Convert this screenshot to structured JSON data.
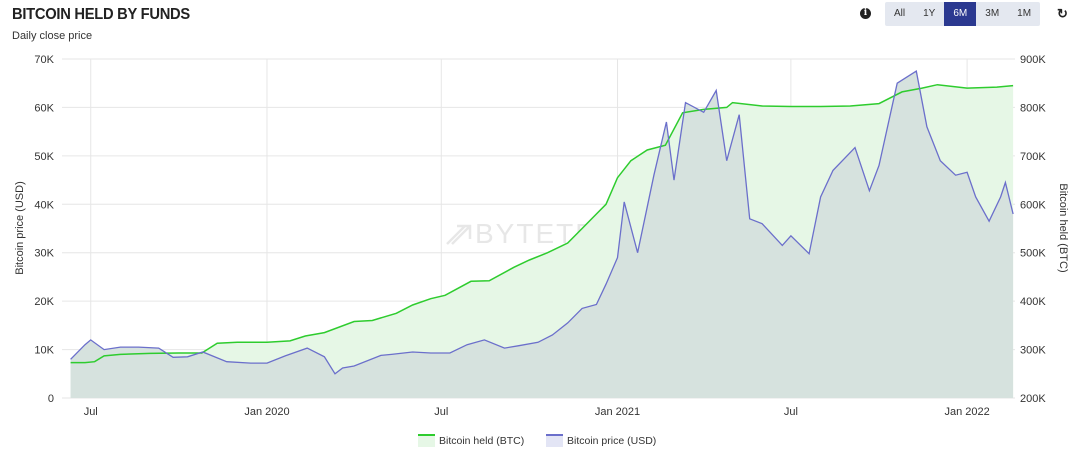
{
  "header": {
    "title": "BITCOIN HELD BY FUNDS",
    "subtitle": "Daily close price",
    "range_buttons": [
      "All",
      "1Y",
      "6M",
      "3M",
      "1M"
    ],
    "active_range": "6M",
    "info_icon": "info-circle-icon",
    "refresh_icon": "refresh-icon"
  },
  "watermark": "BYTETREE",
  "colors": {
    "held_line": "#2ecc2e",
    "held_fill": "#e6f7e6",
    "price_line": "#6b6fcb",
    "price_fill": "#d6e2de",
    "grid": "#e6e6e6",
    "active_button": "#2b3990"
  },
  "chart_data": {
    "type": "area",
    "x_ticks": [
      "Jul",
      "Jan 2020",
      "Jul",
      "Jan 2021",
      "Jul",
      "Jan 2022"
    ],
    "y_left": {
      "label": "Bitcoin price (USD)",
      "ticks": [
        "0",
        "10K",
        "20K",
        "30K",
        "40K",
        "50K",
        "60K",
        "70K"
      ],
      "range": [
        0,
        70000
      ]
    },
    "y_right": {
      "label": "Bitcoin held (BTC)",
      "ticks": [
        "200K",
        "300K",
        "400K",
        "500K",
        "600K",
        "700K",
        "800K",
        "900K"
      ],
      "range": [
        200000,
        900000
      ]
    },
    "grid": true,
    "legend_placement": "bottom-center",
    "series": [
      {
        "name": "Bitcoin held (BTC)",
        "axis": "right",
        "x": [
          "2019-06-10",
          "2019-06-25",
          "2019-07-05",
          "2019-07-15",
          "2019-08-01",
          "2019-09-01",
          "2019-10-01",
          "2019-10-25",
          "2019-11-10",
          "2019-12-01",
          "2020-01-01",
          "2020-01-25",
          "2020-02-10",
          "2020-03-01",
          "2020-04-01",
          "2020-04-20",
          "2020-05-15",
          "2020-06-01",
          "2020-06-20",
          "2020-07-05",
          "2020-08-01",
          "2020-08-20",
          "2020-09-15",
          "2020-10-01",
          "2020-10-20",
          "2020-11-10",
          "2020-11-25",
          "2020-12-10",
          "2020-12-20",
          "2021-01-01",
          "2021-01-15",
          "2021-02-01",
          "2021-02-20",
          "2021-03-10",
          "2021-04-01",
          "2021-04-25",
          "2021-05-01",
          "2021-06-01",
          "2021-07-01",
          "2021-08-01",
          "2021-09-01",
          "2021-10-01",
          "2021-10-25",
          "2021-11-15",
          "2021-12-01",
          "2022-01-01",
          "2022-02-01",
          "2022-02-18"
        ],
        "values": [
          273000,
          273000,
          275000,
          287000,
          290000,
          292000,
          293000,
          293000,
          313000,
          315000,
          315000,
          318000,
          328000,
          335000,
          358000,
          360000,
          375000,
          392000,
          405000,
          412000,
          441000,
          442000,
          470000,
          485000,
          500000,
          520000,
          550000,
          580000,
          600000,
          655000,
          690000,
          712000,
          722000,
          789000,
          796000,
          800000,
          810000,
          803000,
          802000,
          802000,
          803000,
          808000,
          832000,
          840000,
          847000,
          840000,
          842000,
          845000
        ]
      },
      {
        "name": "Bitcoin price (USD)",
        "axis": "left",
        "x": [
          "2019-06-10",
          "2019-06-25",
          "2019-07-01",
          "2019-07-15",
          "2019-08-01",
          "2019-08-20",
          "2019-09-10",
          "2019-09-25",
          "2019-10-10",
          "2019-10-26",
          "2019-11-20",
          "2019-12-15",
          "2020-01-01",
          "2020-01-20",
          "2020-02-12",
          "2020-03-01",
          "2020-03-12",
          "2020-03-20",
          "2020-04-01",
          "2020-04-29",
          "2020-05-10",
          "2020-06-01",
          "2020-06-20",
          "2020-07-10",
          "2020-07-28",
          "2020-08-15",
          "2020-09-05",
          "2020-09-20",
          "2020-10-10",
          "2020-10-25",
          "2020-11-10",
          "2020-11-25",
          "2020-12-10",
          "2020-12-20",
          "2021-01-01",
          "2021-01-08",
          "2021-01-22",
          "2021-02-08",
          "2021-02-21",
          "2021-03-01",
          "2021-03-13",
          "2021-04-01",
          "2021-04-14",
          "2021-04-25",
          "2021-05-08",
          "2021-05-19",
          "2021-06-01",
          "2021-06-22",
          "2021-07-01",
          "2021-07-20",
          "2021-08-01",
          "2021-08-14",
          "2021-09-06",
          "2021-09-21",
          "2021-10-01",
          "2021-10-20",
          "2021-11-09",
          "2021-11-20",
          "2021-12-04",
          "2021-12-20",
          "2022-01-01",
          "2022-01-10",
          "2022-01-24",
          "2022-02-05",
          "2022-02-10",
          "2022-02-18"
        ],
        "values": [
          8000,
          11000,
          12000,
          10000,
          10500,
          10500,
          10300,
          8400,
          8500,
          9500,
          7500,
          7200,
          7200,
          8700,
          10300,
          8500,
          5000,
          6200,
          6600,
          8800,
          9000,
          9500,
          9300,
          9300,
          11000,
          12000,
          10300,
          10800,
          11500,
          13000,
          15500,
          18500,
          19300,
          23500,
          29000,
          40500,
          30000,
          46000,
          57000,
          45000,
          61000,
          59000,
          63500,
          49000,
          58500,
          37000,
          36000,
          31500,
          33500,
          29800,
          41500,
          47000,
          51700,
          42800,
          48000,
          65000,
          67500,
          56000,
          49000,
          46000,
          46600,
          41500,
          36500,
          41500,
          44500,
          38000
        ]
      }
    ]
  }
}
